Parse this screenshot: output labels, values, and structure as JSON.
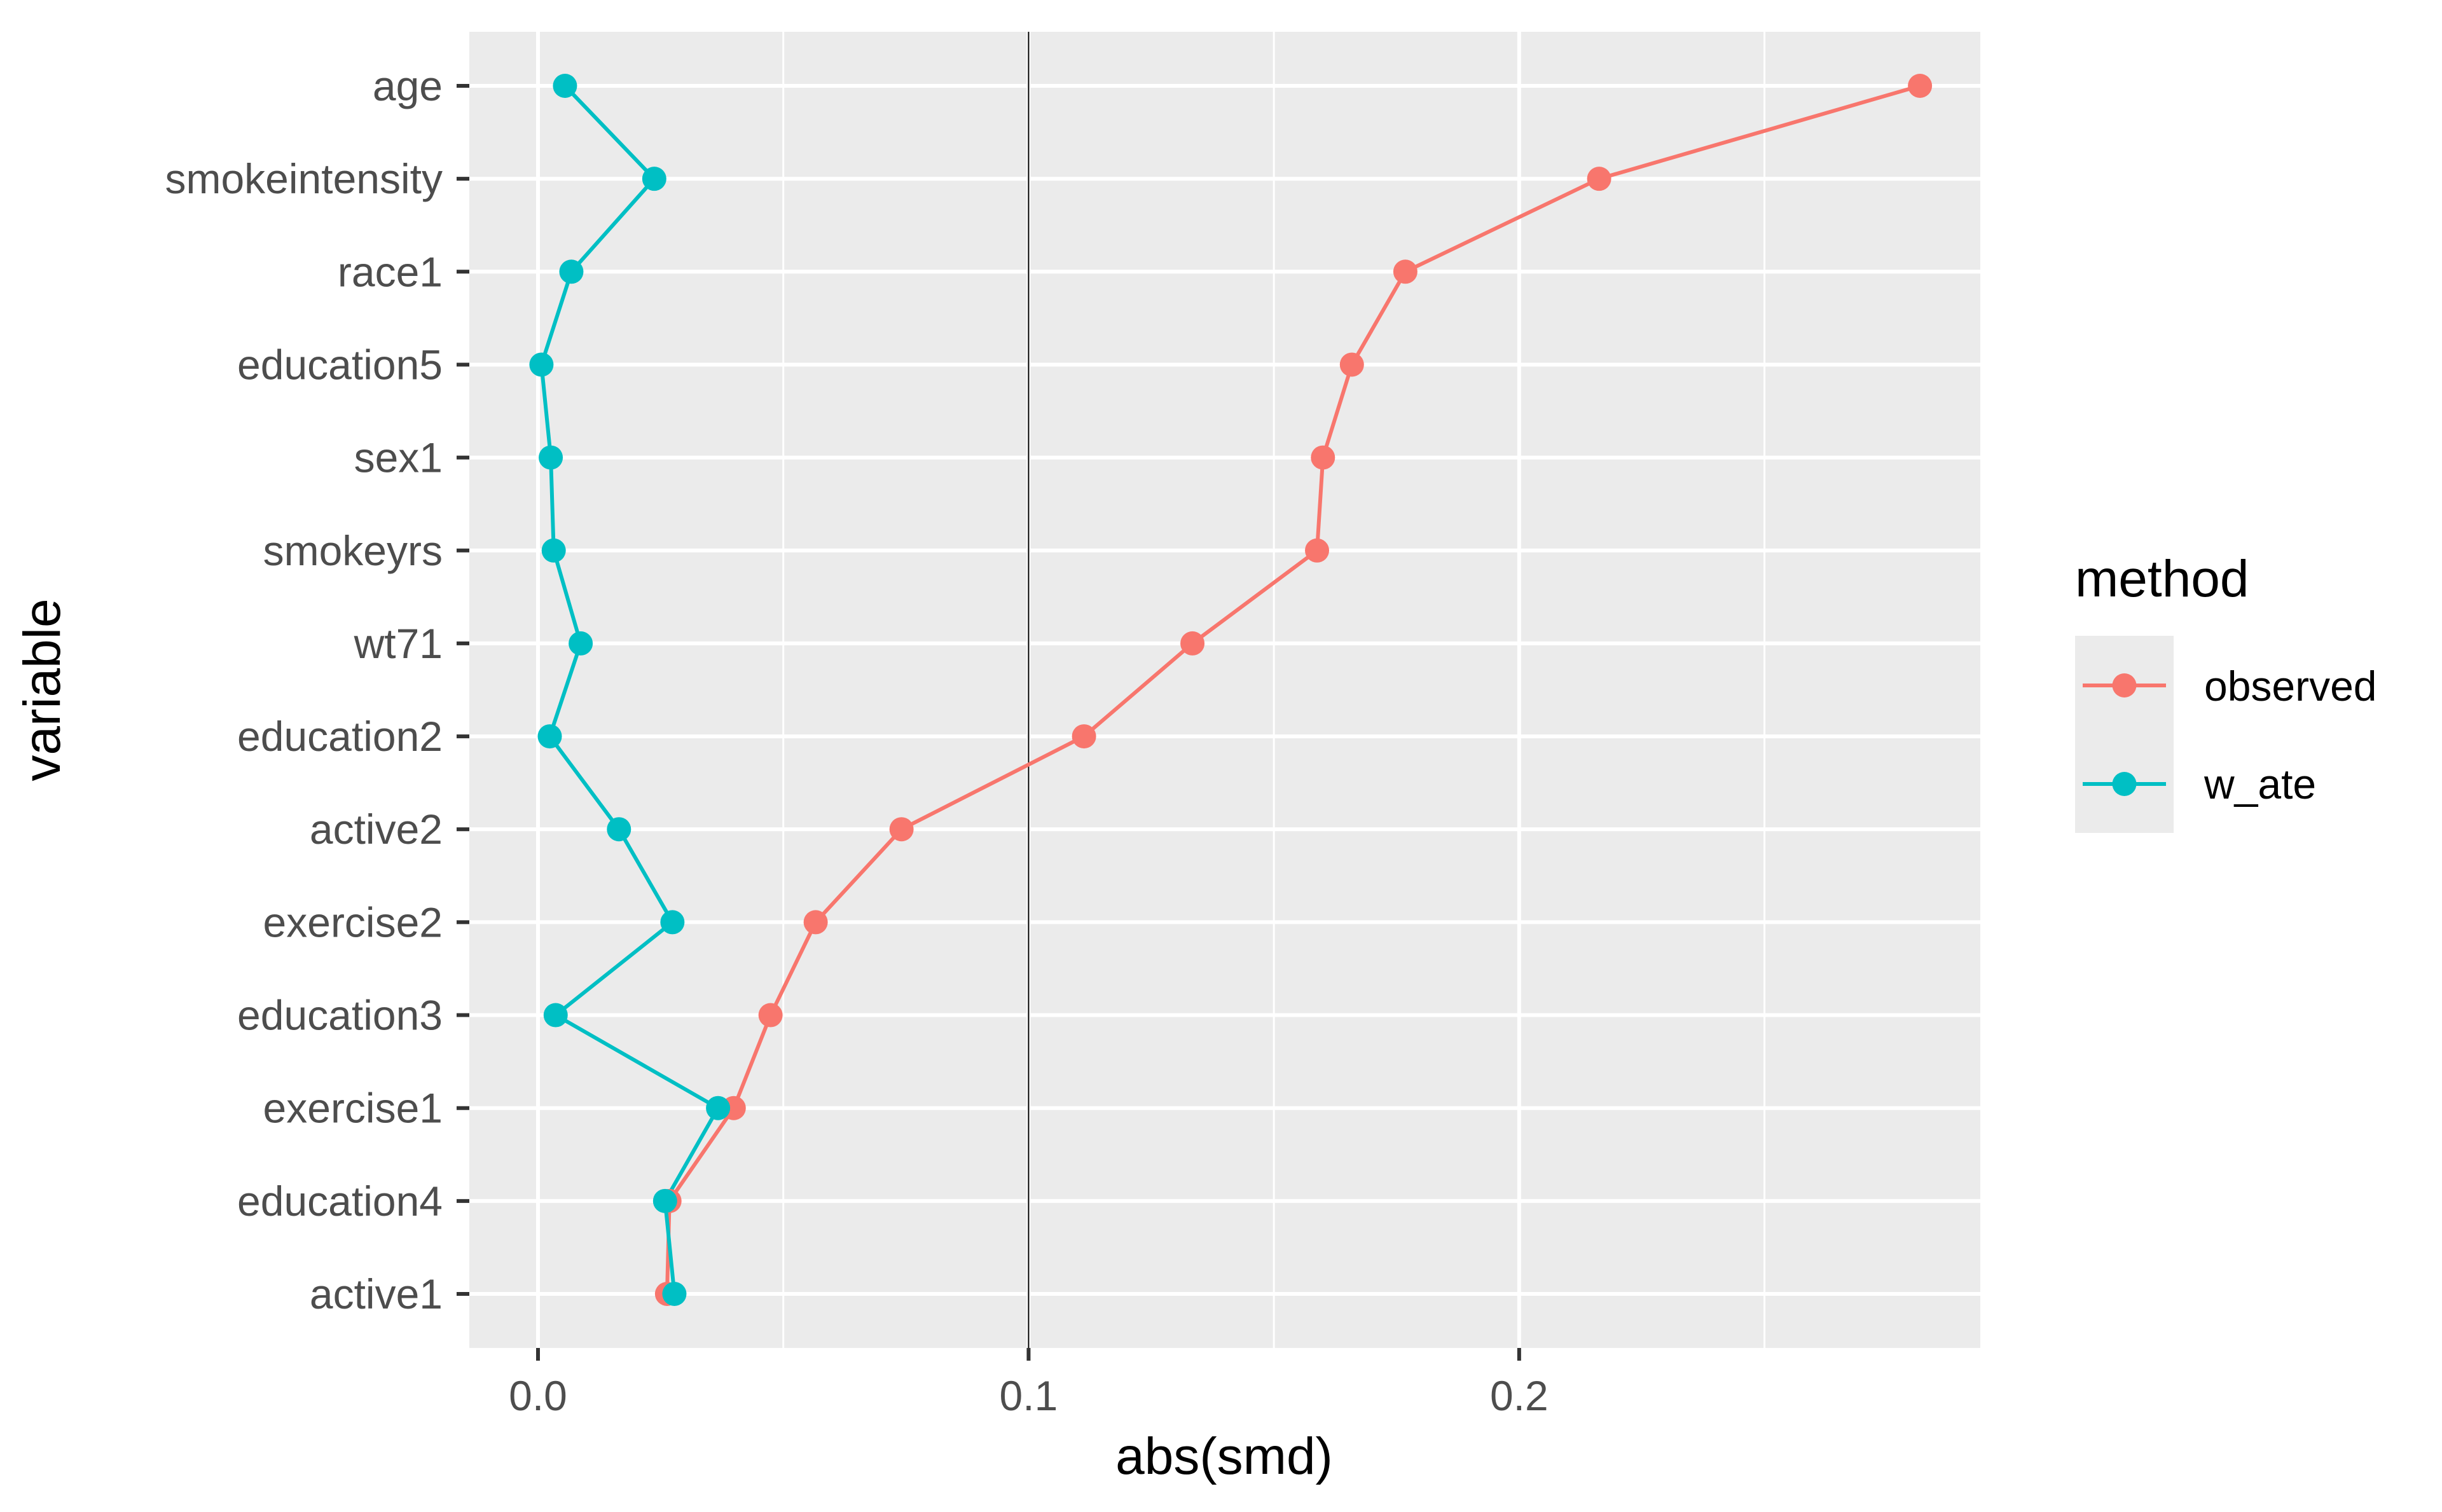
{
  "chart_data": {
    "type": "line",
    "xlabel": "abs(smd)",
    "ylabel": "variable",
    "xlim": [
      -0.014,
      0.294
    ],
    "x_ticks": [
      0.0,
      0.1,
      0.2
    ],
    "x_tick_labels": [
      "0.0",
      "0.1",
      "0.2"
    ],
    "x_minor_gridlines": [
      0.05,
      0.15,
      0.25
    ],
    "reference_line_x": 0.1,
    "categories": [
      "age",
      "smokeintensity",
      "race1",
      "education5",
      "sex1",
      "smokeyrs",
      "wt71",
      "education2",
      "active2",
      "exercise2",
      "education3",
      "exercise1",
      "education4",
      "active1"
    ],
    "grid": true,
    "legend": {
      "title": "method",
      "position": "right",
      "entries": [
        "observed",
        "w_ate"
      ]
    },
    "series": [
      {
        "name": "observed",
        "color": "#F8766D",
        "values": [
          0.2817,
          0.2163,
          0.1768,
          0.1659,
          0.16,
          0.1588,
          0.1334,
          0.1113,
          0.0741,
          0.0566,
          0.0474,
          0.0399,
          0.0268,
          0.0263
        ]
      },
      {
        "name": "w_ate",
        "color": "#00BFC4",
        "values": [
          0.0055,
          0.0237,
          0.0068,
          0.0007,
          0.0026,
          0.0032,
          0.0087,
          0.0024,
          0.0165,
          0.0274,
          0.0036,
          0.0367,
          0.0259,
          0.0278
        ]
      }
    ]
  }
}
